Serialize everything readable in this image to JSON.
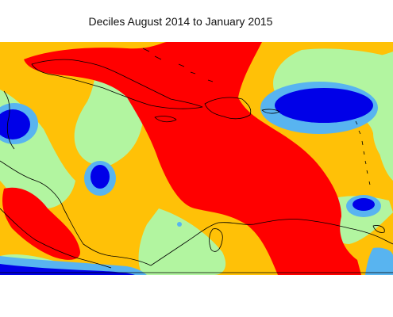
{
  "map": {
    "title": "Deciles August 2014 to January 2015",
    "colors": {
      "background_green": "#b2f5a0",
      "orange": "#ffc107",
      "red": "#ff0000",
      "light_blue": "#58b4f0",
      "blue": "#0000e8",
      "coastline": "#000000"
    }
  }
}
